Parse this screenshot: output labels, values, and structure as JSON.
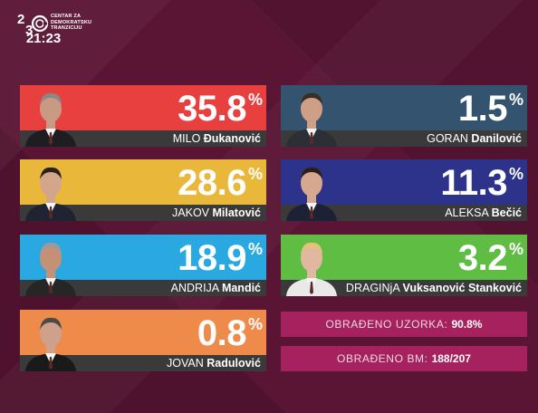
{
  "header": {
    "logo_lines": [
      "CENTAR ZA",
      "DEMOKRATSKU",
      "TRANZICIJU"
    ],
    "time": "21:23"
  },
  "candidates": [
    {
      "first": "MILO",
      "last": "Đukanović",
      "percent": "35.8",
      "sign": "%",
      "color": "#e8403e"
    },
    {
      "first": "JAKOV",
      "last": "Milatović",
      "percent": "28.6",
      "sign": "%",
      "color": "#e9b83b"
    },
    {
      "first": "ANDRIJA",
      "last": "Mandić",
      "percent": "18.9",
      "sign": "%",
      "color": "#2aa8e1"
    },
    {
      "first": "JOVAN",
      "last": "Radulović",
      "percent": "0.8",
      "sign": "%",
      "color": "#ee8a4a"
    },
    {
      "first": "GORAN",
      "last": "Danilović",
      "percent": "1.5",
      "sign": "%",
      "color": "#33536e"
    },
    {
      "first": "ALEKSA",
      "last": "Bečić",
      "percent": "11.3",
      "sign": "%",
      "color": "#2d338a"
    },
    {
      "first": "DRAGINjA",
      "last": "Vuksanović Stanković",
      "percent": "3.2",
      "sign": "%",
      "color": "#5fbd44"
    }
  ],
  "status": {
    "sample_label": "OBRAĐENO UZORKA:",
    "sample_value": "90.8%",
    "bm_label": "OBRAĐENO BM:",
    "bm_value": "188/207"
  }
}
